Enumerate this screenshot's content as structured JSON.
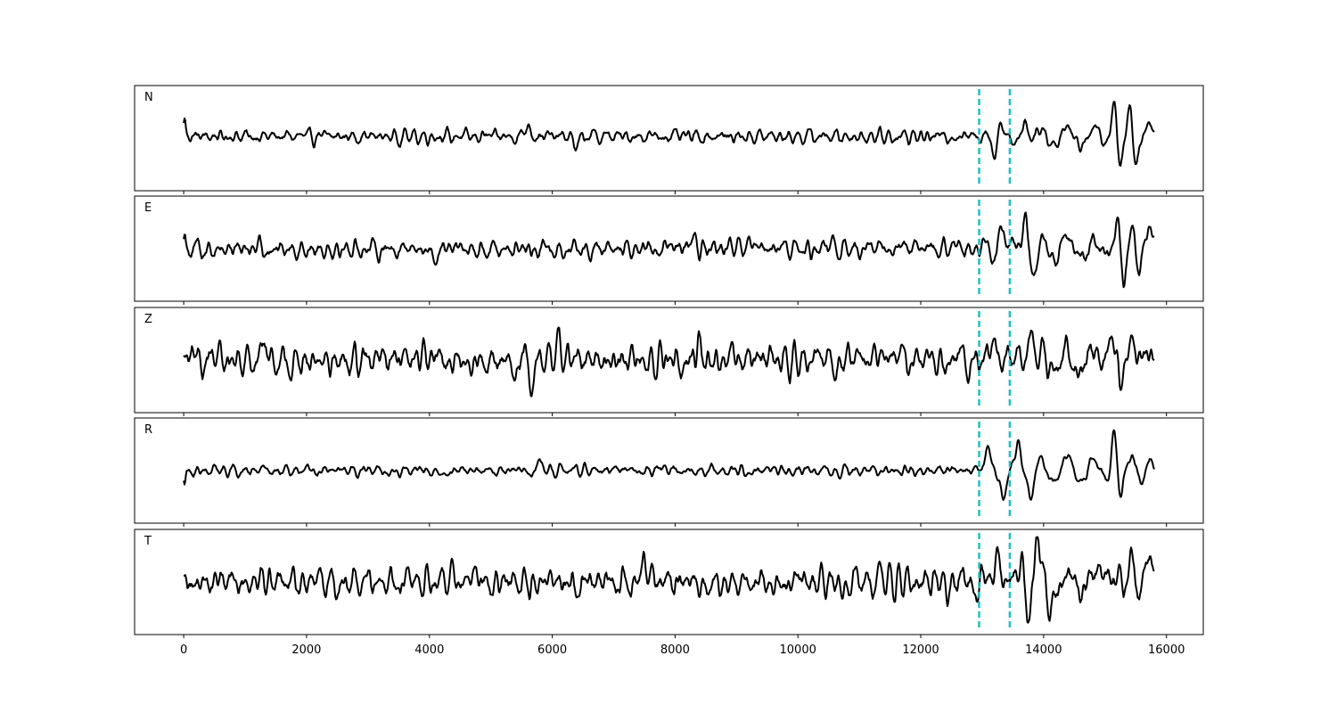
{
  "chart_data": {
    "type": "line",
    "title": "",
    "xlabel": "",
    "ylabel": "",
    "xlim": [
      -800,
      16600
    ],
    "x_ticks": [
      0,
      2000,
      4000,
      6000,
      8000,
      10000,
      12000,
      14000,
      16000
    ],
    "x_tick_labels": [
      "0",
      "2000",
      "4000",
      "6000",
      "8000",
      "10000",
      "12000",
      "14000",
      "16000"
    ],
    "sample_range": [
      0,
      15800
    ],
    "grid": false,
    "legend": false,
    "colors": {
      "trace": "#000000",
      "pick": "#1fc0c0"
    },
    "picks": [
      12950,
      13450
    ],
    "channels": [
      {
        "label": "N",
        "onset_spike": 0.42,
        "noise_level": 0.1,
        "event_amplitude": 0.55,
        "features": [
          [
            5600,
            0.3
          ],
          [
            6400,
            -0.28
          ],
          [
            13300,
            0.55
          ],
          [
            13200,
            -0.5
          ],
          [
            13500,
            -0.4
          ],
          [
            13700,
            0.55
          ],
          [
            15150,
            0.85
          ],
          [
            15250,
            -0.9
          ],
          [
            15400,
            0.8
          ],
          [
            15500,
            -0.6
          ],
          [
            15750,
            0.3
          ]
        ]
      },
      {
        "label": "E",
        "onset_spike": 0.4,
        "noise_level": 0.14,
        "event_amplitude": 0.6,
        "features": [
          [
            4100,
            -0.3
          ],
          [
            8300,
            0.25
          ],
          [
            13300,
            0.85
          ],
          [
            13200,
            -0.4
          ],
          [
            13700,
            0.9
          ],
          [
            13850,
            -0.75
          ],
          [
            15200,
            0.7
          ],
          [
            15300,
            -0.9
          ],
          [
            15450,
            0.75
          ],
          [
            15550,
            -0.45
          ],
          [
            15750,
            0.55
          ]
        ]
      },
      {
        "label": "Z",
        "onset_spike": 0.2,
        "noise_level": 0.22,
        "event_amplitude": 0.6,
        "features": [
          [
            1300,
            0.4
          ],
          [
            5400,
            -0.65
          ],
          [
            5550,
            0.5
          ],
          [
            5650,
            -0.65
          ],
          [
            6100,
            0.45
          ],
          [
            8400,
            0.45
          ],
          [
            13200,
            0.6
          ],
          [
            13800,
            0.55
          ],
          [
            15100,
            0.95
          ],
          [
            15250,
            -0.85
          ],
          [
            15450,
            0.4
          ]
        ]
      },
      {
        "label": "R",
        "onset_spike": -0.35,
        "noise_level": 0.08,
        "event_amplitude": 0.7,
        "features": [
          [
            5800,
            0.25
          ],
          [
            13100,
            0.5
          ],
          [
            13350,
            -0.6
          ],
          [
            13600,
            0.6
          ],
          [
            13800,
            -0.55
          ],
          [
            15150,
            0.95
          ],
          [
            15250,
            -0.85
          ],
          [
            15450,
            0.55
          ],
          [
            15600,
            -0.35
          ],
          [
            15750,
            0.15
          ]
        ]
      },
      {
        "label": "T",
        "onset_spike": 0.1,
        "noise_level": 0.22,
        "event_amplitude": 0.65,
        "features": [
          [
            7500,
            0.4
          ],
          [
            12900,
            -0.5
          ],
          [
            13250,
            0.85
          ],
          [
            13650,
            0.75
          ],
          [
            13750,
            -0.8
          ],
          [
            13900,
            0.95
          ],
          [
            14100,
            -0.7
          ],
          [
            15000,
            0.6
          ],
          [
            15450,
            0.95
          ],
          [
            15550,
            -0.4
          ],
          [
            15750,
            0.55
          ]
        ]
      }
    ]
  }
}
